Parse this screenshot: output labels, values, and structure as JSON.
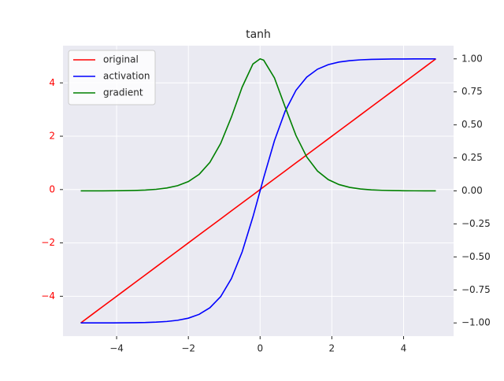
{
  "chart_data": {
    "type": "line",
    "title": "tanh",
    "x": [
      -5,
      -4.7,
      -4.4,
      -4.1,
      -3.8,
      -3.5,
      -3.2,
      -2.9,
      -2.6,
      -2.3,
      -2.0,
      -1.7,
      -1.4,
      -1.1,
      -0.8,
      -0.5,
      -0.2,
      0,
      0.1,
      0.4,
      0.7,
      1.0,
      1.3,
      1.6,
      1.9,
      2.2,
      2.5,
      2.8,
      3.1,
      3.4,
      3.7,
      4.0,
      4.3,
      4.6,
      4.9
    ],
    "series": [
      {
        "name": "original",
        "color": "#ff0000",
        "values": [
          -5,
          -4.7,
          -4.4,
          -4.1,
          -3.8,
          -3.5,
          -3.2,
          -2.9,
          -2.6,
          -2.3,
          -2.0,
          -1.7,
          -1.4,
          -1.1,
          -0.8,
          -0.5,
          -0.2,
          0,
          0.1,
          0.4,
          0.7,
          1.0,
          1.3,
          1.6,
          1.9,
          2.2,
          2.5,
          2.8,
          3.1,
          3.4,
          3.7,
          4.0,
          4.3,
          4.6,
          4.9
        ]
      },
      {
        "name": "activation",
        "color": "#0000ff",
        "axis": "y2",
        "values": [
          -0.9999,
          -0.9998,
          -0.9997,
          -0.9995,
          -0.999,
          -0.998,
          -0.997,
          -0.994,
          -0.989,
          -0.98,
          -0.964,
          -0.935,
          -0.885,
          -0.801,
          -0.664,
          -0.462,
          -0.197,
          0,
          0.0997,
          0.3799,
          0.6044,
          0.7616,
          0.8617,
          0.9217,
          0.9562,
          0.9757,
          0.9866,
          0.9926,
          0.9959,
          0.9978,
          0.9988,
          0.9993,
          0.9996,
          0.9998,
          0.9999
        ]
      },
      {
        "name": "gradient",
        "color": "#008000",
        "axis": "y2",
        "values": [
          0.0002,
          0.0003,
          0.0006,
          0.0011,
          0.002,
          0.0036,
          0.0066,
          0.012,
          0.0218,
          0.0394,
          0.0707,
          0.125,
          0.2161,
          0.3592,
          0.5591,
          0.7864,
          0.961,
          1,
          0.9901,
          0.8557,
          0.6347,
          0.42,
          0.2574,
          0.1505,
          0.0857,
          0.048,
          0.0266,
          0.0147,
          0.0081,
          0.0045,
          0.0025,
          0.0013,
          0.0007,
          0.0004,
          0.0002
        ]
      }
    ],
    "xlim": [
      -5.495,
      5.395
    ],
    "xticks": [
      {
        "value": -4,
        "label": "−4"
      },
      {
        "value": -2,
        "label": "−2"
      },
      0,
      2,
      4
    ],
    "ylim": [
      -5.495,
      5.395
    ],
    "yticks": [
      {
        "value": -4,
        "label": "−4"
      },
      {
        "value": -2,
        "label": "−2"
      },
      0,
      2,
      4
    ],
    "y_tick_color": "#ff0000",
    "y2lim": [
      -1.1,
      1.1
    ],
    "y2ticks": [
      {
        "value": -1,
        "label": "−1.00"
      },
      {
        "value": -0.75,
        "label": "−0.75"
      },
      {
        "value": -0.5,
        "label": "−0.50"
      },
      {
        "value": -0.25,
        "label": "−0.25"
      },
      {
        "value": 0,
        "label": "0.00"
      },
      {
        "value": 0.25,
        "label": "0.25"
      },
      {
        "value": 0.5,
        "label": "0.50"
      },
      {
        "value": 0.75,
        "label": "0.75"
      },
      {
        "value": 1,
        "label": "1.00"
      }
    ],
    "grid": true,
    "legend": "upper-left"
  }
}
